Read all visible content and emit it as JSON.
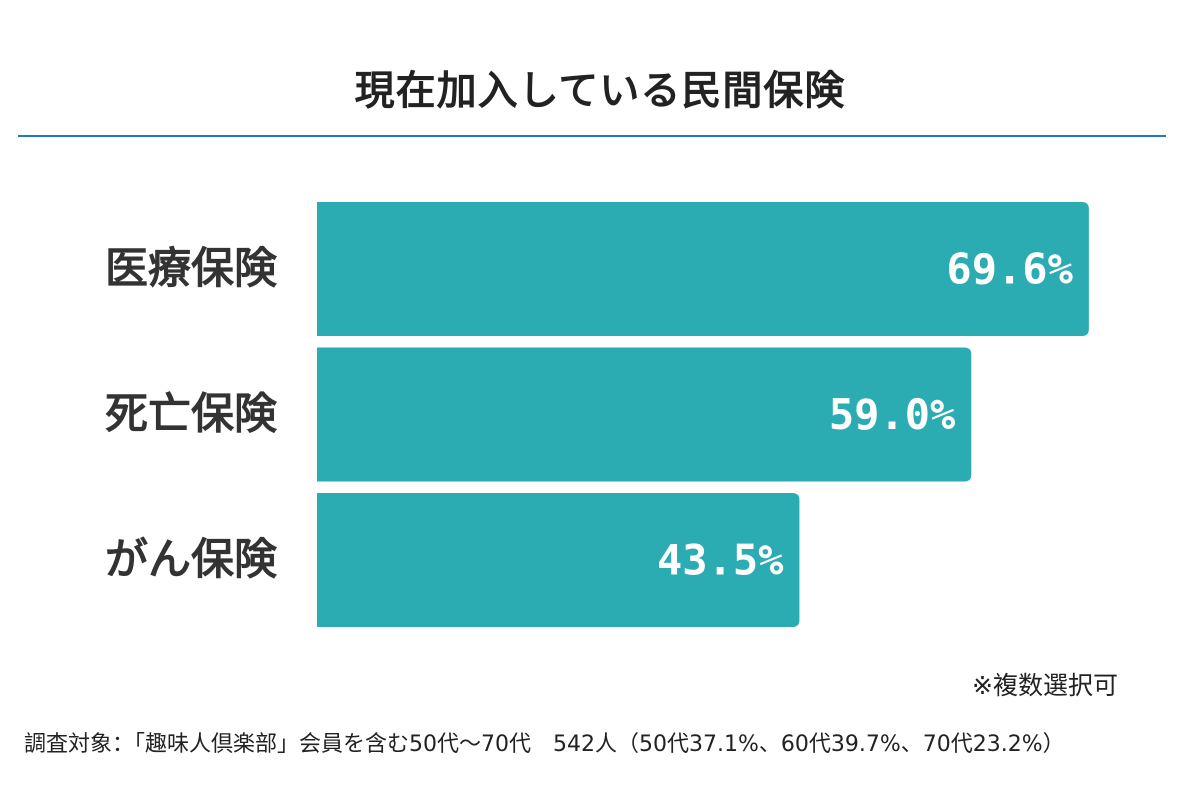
{
  "title": "現在加入している民間保険",
  "note": "※複数選択可",
  "footer": "調査対象：「趣味人倶楽部」会員を含む50代〜70代　542人（50代37.1%、60代39.7%、70代23.2%）",
  "colors": {
    "bar": "#2aacb2",
    "title_rule": "#1f78c8",
    "value_text": "#ffffff",
    "category_text": "#333333"
  },
  "chart_data": {
    "type": "bar",
    "orientation": "horizontal",
    "categories": [
      "医療保険",
      "死亡保険",
      "がん保険"
    ],
    "values": [
      69.6,
      59.0,
      43.5
    ],
    "value_labels": [
      "69.6%",
      "59.0%",
      "43.5%"
    ],
    "unit": "%",
    "xlim": [
      0,
      100
    ],
    "grid": false,
    "legend": "none"
  }
}
